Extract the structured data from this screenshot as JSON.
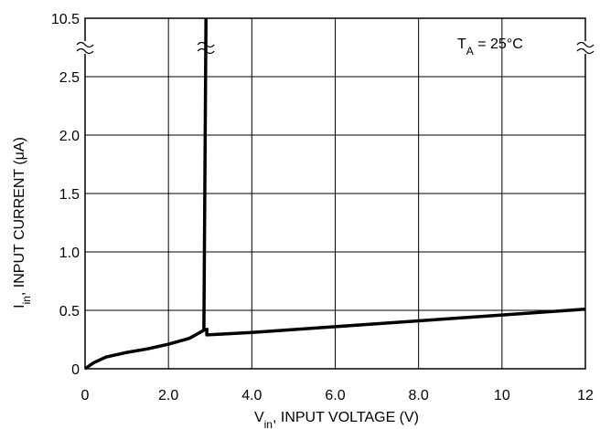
{
  "chart_data": {
    "type": "line",
    "x_label": {
      "main": "V",
      "sub": "in",
      "rest": ", INPUT VOLTAGE (V)"
    },
    "y_label": {
      "main": "I",
      "sub": "in",
      "rest": ", INPUT CURRENT (μA)"
    },
    "annotation": {
      "main": "T",
      "sub": "A",
      "rest": " = 25°C"
    },
    "xlim": [
      0,
      12
    ],
    "xticks": [
      0,
      {
        "value": 2,
        "label": "2.0"
      },
      {
        "value": 4,
        "label": "4.0"
      },
      {
        "value": 6,
        "label": "6.0"
      },
      {
        "value": 8,
        "label": "8.0"
      },
      10,
      12
    ],
    "ylim": [
      0,
      10.5
    ],
    "yticks": [
      0,
      0.5,
      {
        "value": 1,
        "label": "1.0"
      },
      1.5,
      {
        "value": 2,
        "label": "2.0"
      },
      2.5,
      10.5
    ],
    "grid": true,
    "series": [
      {
        "color": "#000000",
        "x": [
          0,
          0.2,
          0.5,
          1.0,
          1.5,
          2.0,
          2.5,
          2.7,
          2.85,
          2.9,
          null,
          2.92,
          2.92,
          4,
          6,
          8,
          10,
          12
        ],
        "values": [
          0,
          0.05,
          0.1,
          0.14,
          0.17,
          0.21,
          0.26,
          0.3,
          0.33,
          10.5,
          null,
          0.35,
          0.29,
          0.31,
          0.36,
          0.41,
          0.46,
          0.51
        ]
      }
    ]
  }
}
